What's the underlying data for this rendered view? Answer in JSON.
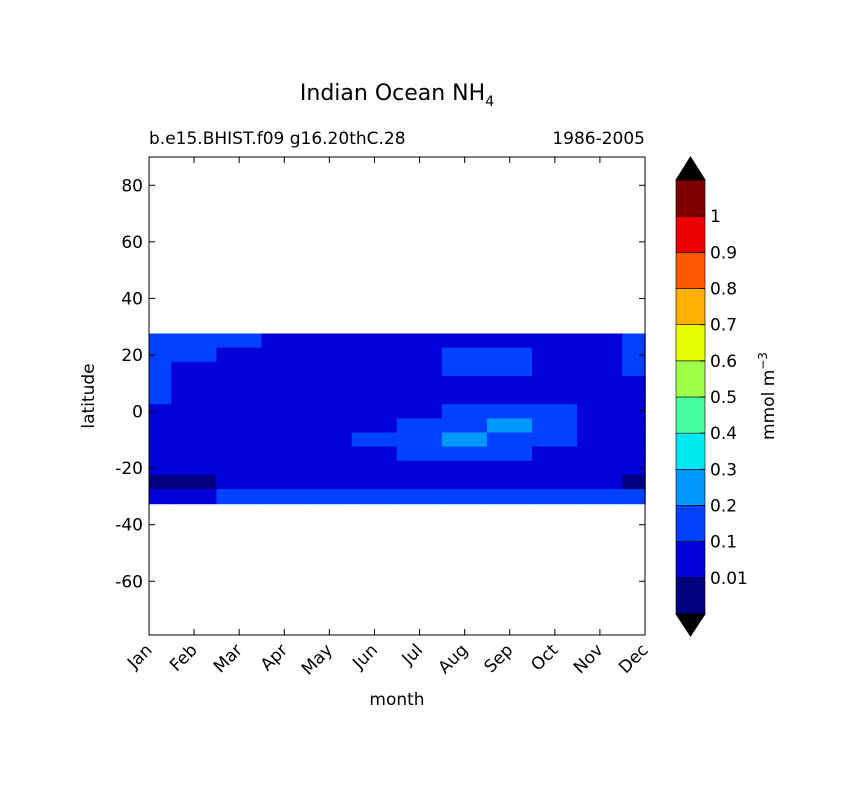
{
  "chart_data": {
    "type": "contourf",
    "title": "Indian Ocean NH",
    "title_subscript": "4",
    "subtitle_left": "b.e15.BHIST.f09 g16.20thC.28",
    "subtitle_right": "1986-2005",
    "xlabel": "month",
    "ylabel": "latitude",
    "categories": [
      "Jan",
      "Feb",
      "Mar",
      "Apr",
      "May",
      "Jun",
      "Jul",
      "Aug",
      "Sep",
      "Oct",
      "Nov",
      "Dec"
    ],
    "y": [
      25,
      20,
      15,
      10,
      5,
      0,
      -5,
      -10,
      -15,
      -20,
      -25,
      -30
    ],
    "z": [
      [
        0.15,
        0.15,
        0.15,
        0.05,
        0.05,
        0.05,
        0.05,
        0.05,
        0.05,
        0.05,
        0.05,
        0.15
      ],
      [
        0.15,
        0.12,
        0.05,
        0.05,
        0.05,
        0.05,
        0.05,
        0.15,
        0.15,
        0.05,
        0.05,
        0.15
      ],
      [
        0.15,
        0.05,
        0.05,
        0.05,
        0.05,
        0.05,
        0.05,
        0.15,
        0.12,
        0.05,
        0.05,
        0.15
      ],
      [
        0.15,
        0.05,
        0.05,
        0.05,
        0.05,
        0.05,
        0.05,
        0.05,
        0.05,
        0.05,
        0.05,
        0.05
      ],
      [
        0.15,
        0.05,
        0.05,
        0.05,
        0.05,
        0.05,
        0.05,
        0.05,
        0.05,
        0.05,
        0.05,
        0.05
      ],
      [
        0.05,
        0.05,
        0.05,
        0.05,
        0.05,
        0.05,
        0.05,
        0.15,
        0.15,
        0.12,
        0.05,
        0.05
      ],
      [
        0.05,
        0.05,
        0.05,
        0.05,
        0.05,
        0.05,
        0.12,
        0.15,
        0.25,
        0.15,
        0.05,
        0.05
      ],
      [
        0.05,
        0.05,
        0.05,
        0.05,
        0.05,
        0.12,
        0.15,
        0.25,
        0.15,
        0.15,
        0.05,
        0.05
      ],
      [
        0.05,
        0.05,
        0.05,
        0.05,
        0.05,
        0.05,
        0.15,
        0.15,
        0.15,
        0.05,
        0.05,
        0.05
      ],
      [
        0.05,
        0.05,
        0.05,
        0.05,
        0.05,
        0.05,
        0.05,
        0.05,
        0.05,
        0.05,
        0.05,
        0.05
      ],
      [
        0.005,
        0.005,
        0.05,
        0.05,
        0.05,
        0.05,
        0.05,
        0.05,
        0.05,
        0.05,
        0.05,
        0.005
      ],
      [
        0.05,
        0.05,
        0.15,
        0.15,
        0.15,
        0.15,
        0.15,
        0.15,
        0.15,
        0.15,
        0.15,
        0.15
      ]
    ],
    "ylim": [
      -79,
      90
    ],
    "yticks": [
      -60,
      -40,
      -20,
      0,
      20,
      40,
      60,
      80
    ],
    "colorbar": {
      "label": "mmol m",
      "label_superscript": "−3",
      "levels": [
        0.01,
        0.1,
        0.2,
        0.3,
        0.4,
        0.5,
        0.6,
        0.7,
        0.8,
        0.9,
        1
      ],
      "colors": [
        "#000080",
        "#0000d8",
        "#0040ff",
        "#0098ff",
        "#00e8f0",
        "#48ffa0",
        "#a0ff48",
        "#e8ff00",
        "#ffb000",
        "#ff5800",
        "#ee0000",
        "#800000"
      ],
      "extend_color": "#000000"
    }
  }
}
